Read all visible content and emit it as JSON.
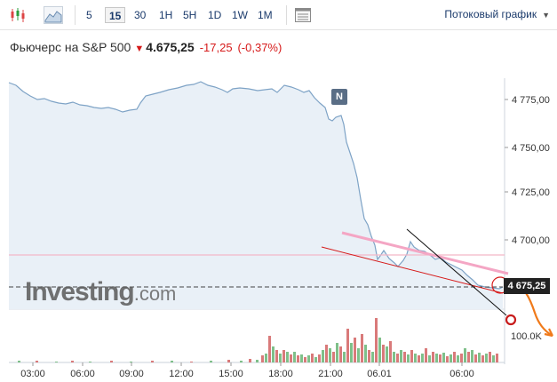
{
  "toolbar": {
    "intervals": [
      {
        "label": "5",
        "active": false
      },
      {
        "label": "15",
        "active": true
      },
      {
        "label": "30",
        "active": false
      },
      {
        "label": "1H",
        "active": false
      },
      {
        "label": "5H",
        "active": false
      },
      {
        "label": "1D",
        "active": false
      },
      {
        "label": "1W",
        "active": false
      },
      {
        "label": "1M",
        "active": false
      }
    ],
    "stream_label": "Потоковый график"
  },
  "header": {
    "name": "Фьючерс на S&P 500",
    "price": "4.675,25",
    "change": "-17,25",
    "change_pct": "(-0,37%)"
  },
  "chart_data": {
    "type": "area",
    "x_ticks": [
      "03:00",
      "06:00",
      "09:00",
      "12:00",
      "15:00",
      "18:00",
      "21:00",
      "06.01",
      "06:00"
    ],
    "y_ticks": [
      "4 775,00",
      "4 750,00",
      "4 725,00",
      "4 700,00"
    ],
    "ylim": [
      4663,
      4787
    ],
    "price_label": "4 675,25",
    "volume_label": "100.0K",
    "event_badge": "N",
    "watermark": "Investing",
    "watermark_suffix": ".com",
    "colors": {
      "line": "#7ea3c6",
      "fill": "#e9f0f7",
      "down": "#d61a1a",
      "up": "#2a9d3c"
    }
  }
}
